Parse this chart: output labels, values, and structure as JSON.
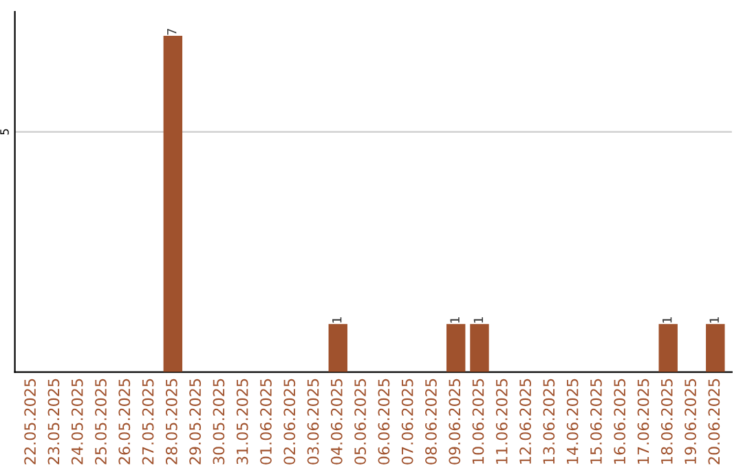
{
  "chart_data": {
    "type": "bar",
    "categories": [
      "22.05.2025",
      "23.05.2025",
      "24.05.2025",
      "25.05.2025",
      "26.05.2025",
      "27.05.2025",
      "28.05.2025",
      "29.05.2025",
      "30.05.2025",
      "31.05.2025",
      "01.06.2025",
      "02.06.2025",
      "03.06.2025",
      "04.06.2025",
      "05.06.2025",
      "06.06.2025",
      "07.06.2025",
      "08.06.2025",
      "09.06.2025",
      "10.06.2025",
      "11.06.2025",
      "12.06.2025",
      "13.06.2025",
      "14.06.2025",
      "15.06.2025",
      "16.06.2025",
      "17.06.2025",
      "18.06.2025",
      "19.06.2025",
      "20.06.2025"
    ],
    "values": [
      0,
      0,
      0,
      0,
      0,
      0,
      7,
      0,
      0,
      0,
      0,
      0,
      0,
      1,
      0,
      0,
      0,
      0,
      1,
      1,
      0,
      0,
      0,
      0,
      0,
      0,
      0,
      1,
      0,
      1
    ],
    "value_labels": [
      null,
      null,
      null,
      null,
      null,
      null,
      "7",
      null,
      null,
      null,
      null,
      null,
      null,
      "1",
      null,
      null,
      null,
      null,
      "1",
      "1",
      null,
      null,
      null,
      null,
      null,
      null,
      null,
      "1",
      null,
      "1"
    ],
    "color": "#a0522d",
    "ylim": [
      0,
      7.5
    ],
    "yticks": [
      5
    ],
    "grid": "y"
  }
}
